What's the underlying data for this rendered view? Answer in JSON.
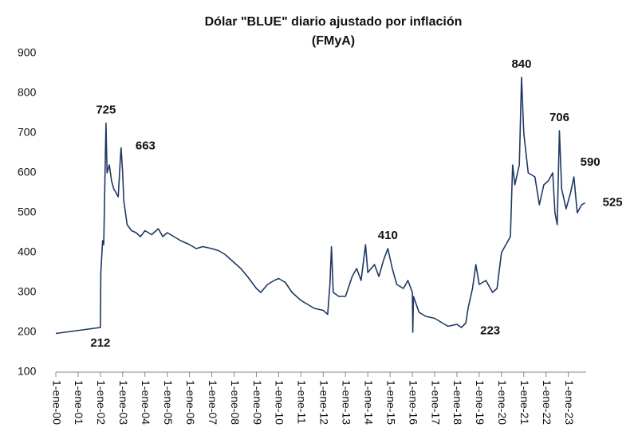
{
  "chart_data": {
    "type": "line",
    "title": "Dólar \"BLUE\" diario ajustado por inflación",
    "subtitle": "(FMyA)",
    "color": "#1f3864",
    "x": [
      2000.0,
      2002.0,
      2002.02,
      2002.1,
      2002.15,
      2002.25,
      2002.3,
      2002.4,
      2002.5,
      2002.6,
      2002.8,
      2002.9,
      2002.93,
      2003.0,
      2003.05,
      2003.2,
      2003.4,
      2003.6,
      2003.8,
      2004.0,
      2004.3,
      2004.6,
      2004.8,
      2005.0,
      2005.3,
      2005.6,
      2006.0,
      2006.3,
      2006.6,
      2007.0,
      2007.3,
      2007.6,
      2008.0,
      2008.3,
      2008.6,
      2009.0,
      2009.2,
      2009.5,
      2009.8,
      2010.0,
      2010.3,
      2010.6,
      2011.0,
      2011.3,
      2011.6,
      2012.0,
      2012.2,
      2012.3,
      2012.37,
      2012.45,
      2012.7,
      2013.0,
      2013.3,
      2013.5,
      2013.7,
      2013.9,
      2014.0,
      2014.3,
      2014.5,
      2014.7,
      2014.9,
      2015.1,
      2015.3,
      2015.6,
      2015.8,
      2016.0,
      2016.02,
      2016.05,
      2016.3,
      2016.6,
      2017.0,
      2017.3,
      2017.6,
      2018.0,
      2018.2,
      2018.4,
      2018.5,
      2018.7,
      2018.85,
      2019.0,
      2019.3,
      2019.6,
      2019.8,
      2020.0,
      2020.2,
      2020.4,
      2020.5,
      2020.6,
      2020.8,
      2020.9,
      2021.0,
      2021.2,
      2021.5,
      2021.7,
      2021.9,
      2022.1,
      2022.3,
      2022.4,
      2022.5,
      2022.6,
      2022.7,
      2022.9,
      2023.1,
      2023.25,
      2023.4,
      2023.6,
      2023.75
    ],
    "values": [
      197,
      212,
      350,
      430,
      420,
      725,
      600,
      620,
      580,
      560,
      540,
      640,
      663,
      600,
      530,
      470,
      455,
      450,
      440,
      455,
      445,
      460,
      440,
      450,
      440,
      430,
      420,
      410,
      415,
      410,
      405,
      395,
      375,
      360,
      340,
      310,
      300,
      320,
      330,
      335,
      325,
      300,
      280,
      270,
      260,
      255,
      245,
      320,
      415,
      300,
      290,
      290,
      340,
      360,
      330,
      420,
      350,
      370,
      340,
      380,
      410,
      360,
      320,
      310,
      330,
      300,
      200,
      290,
      250,
      240,
      235,
      225,
      215,
      220,
      212,
      223,
      260,
      310,
      370,
      320,
      330,
      300,
      310,
      400,
      420,
      440,
      620,
      570,
      620,
      840,
      700,
      600,
      590,
      520,
      570,
      580,
      600,
      500,
      470,
      706,
      560,
      510,
      550,
      590,
      500,
      520,
      525
    ],
    "annotations": [
      {
        "text": "725",
        "x": 2002.25,
        "y": 725
      },
      {
        "text": "663",
        "x": 2002.93,
        "y": 663
      },
      {
        "text": "212",
        "x": 2002.0,
        "y": 212
      },
      {
        "text": "410",
        "x": 2014.9,
        "y": 410
      },
      {
        "text": "223",
        "x": 2018.4,
        "y": 223
      },
      {
        "text": "840",
        "x": 2020.9,
        "y": 840
      },
      {
        "text": "706",
        "x": 2022.6,
        "y": 706
      },
      {
        "text": "590",
        "x": 2023.25,
        "y": 590
      },
      {
        "text": "525",
        "x": 2023.75,
        "y": 525
      }
    ],
    "xlim": [
      2000,
      2023.8
    ],
    "xticks": [
      {
        "value": 2000,
        "label": "1-ene-00"
      },
      {
        "value": 2001,
        "label": "1-ene-01"
      },
      {
        "value": 2002,
        "label": "1-ene-02"
      },
      {
        "value": 2003,
        "label": "1-ene-03"
      },
      {
        "value": 2004,
        "label": "1-ene-04"
      },
      {
        "value": 2005,
        "label": "1-ene-05"
      },
      {
        "value": 2006,
        "label": "1-ene-06"
      },
      {
        "value": 2007,
        "label": "1-ene-07"
      },
      {
        "value": 2008,
        "label": "1-ene-08"
      },
      {
        "value": 2009,
        "label": "1-ene-09"
      },
      {
        "value": 2010,
        "label": "1-ene-10"
      },
      {
        "value": 2011,
        "label": "1-ene-11"
      },
      {
        "value": 2012,
        "label": "1-ene-12"
      },
      {
        "value": 2013,
        "label": "1-ene-13"
      },
      {
        "value": 2014,
        "label": "1-ene-14"
      },
      {
        "value": 2015,
        "label": "1-ene-15"
      },
      {
        "value": 2016,
        "label": "1-ene-16"
      },
      {
        "value": 2017,
        "label": "1-ene-17"
      },
      {
        "value": 2018,
        "label": "1-ene-18"
      },
      {
        "value": 2019,
        "label": "1-ene-19"
      },
      {
        "value": 2020,
        "label": "1-ene-20"
      },
      {
        "value": 2021,
        "label": "1-ene-21"
      },
      {
        "value": 2022,
        "label": "1-ene-22"
      },
      {
        "value": 2023,
        "label": "1-ene-23"
      }
    ],
    "ylim": [
      100,
      900
    ],
    "yticks": [
      100,
      200,
      300,
      400,
      500,
      600,
      700,
      800,
      900
    ],
    "grid": false
  }
}
